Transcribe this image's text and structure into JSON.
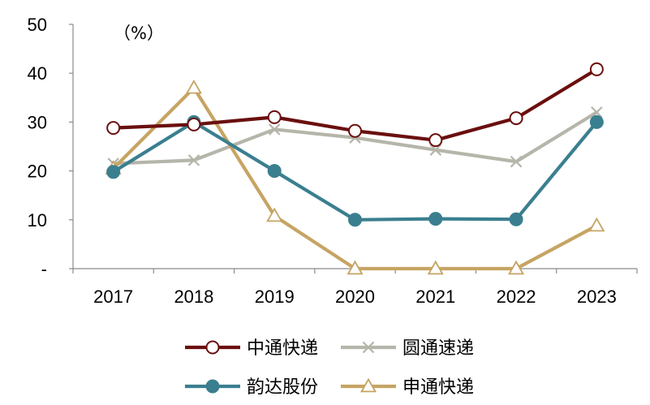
{
  "chart_data": {
    "type": "line",
    "unit_label": "（%）",
    "categories": [
      "2017",
      "2018",
      "2019",
      "2020",
      "2021",
      "2022",
      "2023"
    ],
    "ylim": [
      0,
      50
    ],
    "yticks": [
      {
        "value": 0,
        "label": "-"
      },
      {
        "value": 10,
        "label": "10"
      },
      {
        "value": 20,
        "label": "20"
      },
      {
        "value": 30,
        "label": "30"
      },
      {
        "value": 40,
        "label": "40"
      },
      {
        "value": 50,
        "label": "50"
      }
    ],
    "grid": false,
    "legend_position": "bottom",
    "series": [
      {
        "name": "中通快递",
        "values": [
          28.8,
          29.5,
          31.0,
          28.2,
          26.3,
          30.8,
          40.8
        ],
        "color": "#6b0f0f",
        "marker": "circle-open"
      },
      {
        "name": "圆通速递",
        "values": [
          21.5,
          22.2,
          28.5,
          26.8,
          24.3,
          21.9,
          32.0
        ],
        "color": "#b5b5aa",
        "marker": "x"
      },
      {
        "name": "韵达股份",
        "values": [
          19.8,
          30.0,
          20.0,
          10.0,
          10.2,
          10.1,
          30.0
        ],
        "color": "#3a7f8f",
        "marker": "circle-filled"
      },
      {
        "name": "申通快递",
        "values": [
          20.5,
          37.0,
          10.8,
          0.0,
          0.0,
          0.0,
          8.8
        ],
        "color": "#c6a463",
        "marker": "triangle-open"
      }
    ]
  }
}
